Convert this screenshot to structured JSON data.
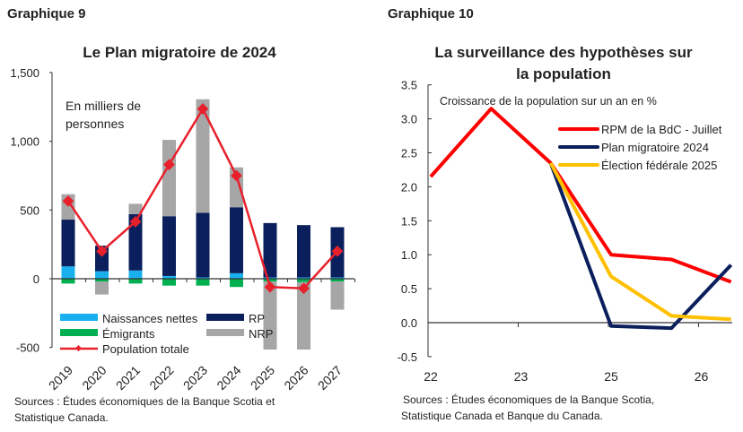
{
  "chart_data": [
    {
      "type": "bar",
      "label": "Graphique 9",
      "title": "Le Plan migratoire de 2024",
      "annotation": "En milliers de personnes",
      "annotation_lines": [
        "En milliers de",
        "personnes"
      ],
      "categories": [
        "2019",
        "2020",
        "2021",
        "2022",
        "2023",
        "2024",
        "2025",
        "2026",
        "2027"
      ],
      "ylim": [
        -500,
        1500
      ],
      "yticks": [
        -500,
        0,
        500,
        1000,
        1500
      ],
      "ytick_labels": [
        "-500",
        "0",
        "500",
        "1,000",
        "1,500"
      ],
      "stacked": true,
      "series": [
        {
          "name": "Naissances nettes",
          "color": "#1ab0f0",
          "values": [
            90,
            55,
            60,
            20,
            10,
            40,
            10,
            10,
            10
          ]
        },
        {
          "name": "RP",
          "color": "#0b1f5c",
          "values": [
            340,
            185,
            410,
            435,
            470,
            480,
            395,
            380,
            365
          ]
        },
        {
          "name": "Émigrants",
          "color": "#00b050",
          "values": [
            -35,
            -20,
            -35,
            -50,
            -50,
            -60,
            -20,
            -25,
            -20
          ]
        },
        {
          "name": "NRP",
          "color": "#a6a6a6",
          "values": [
            185,
            -95,
            75,
            555,
            825,
            290,
            -495,
            -490,
            -205
          ]
        },
        {
          "name": "Population totale",
          "type": "line",
          "color": "#e8202c",
          "values": [
            565,
            200,
            415,
            830,
            1235,
            750,
            -60,
            -70,
            200
          ]
        }
      ],
      "legend": "bottom-left",
      "source_lines": [
        "Sources : Études économiques de la Banque Scotia et",
        "Statistique Canada."
      ]
    },
    {
      "type": "line",
      "label": "Graphique 10",
      "title_lines": [
        "La surveillance des hypothèses sur",
        "la population"
      ],
      "annotation": "Croissance de la population sur un an en %",
      "ylim": [
        -0.5,
        3.5
      ],
      "yticks": [
        "3.5",
        "3.0",
        "2.5",
        "2.0",
        "1.5",
        "1.0",
        "0.5",
        "0.0",
        "-0.5"
      ],
      "xtick_labels": [
        "22",
        "23",
        "25",
        "26"
      ],
      "series": [
        {
          "name": "RPM de la BdC - Juillet",
          "color": "#ff0000",
          "points": [
            [
              0,
              2.15
            ],
            [
              0.67,
              3.15
            ],
            [
              1.33,
              2.35
            ],
            [
              2,
              1.0
            ],
            [
              2.67,
              0.93
            ],
            [
              3.33,
              0.6
            ]
          ]
        },
        {
          "name": "Plan migratoire 2024",
          "color": "#0b1f5c",
          "points": [
            [
              1.33,
              2.35
            ],
            [
              2,
              -0.05
            ],
            [
              2.67,
              -0.08
            ],
            [
              3.33,
              0.85
            ]
          ]
        },
        {
          "name": "Élection fédérale 2025",
          "color": "#ffc000",
          "points": [
            [
              1.33,
              2.35
            ],
            [
              2,
              0.68
            ],
            [
              2.67,
              0.1
            ],
            [
              3.33,
              0.05
            ]
          ]
        }
      ],
      "legend": "top-right",
      "source_lines": [
        "Sources : Études économiques de la Banque Scotia,",
        "Statistique Canada et Banque du Canada."
      ]
    }
  ]
}
